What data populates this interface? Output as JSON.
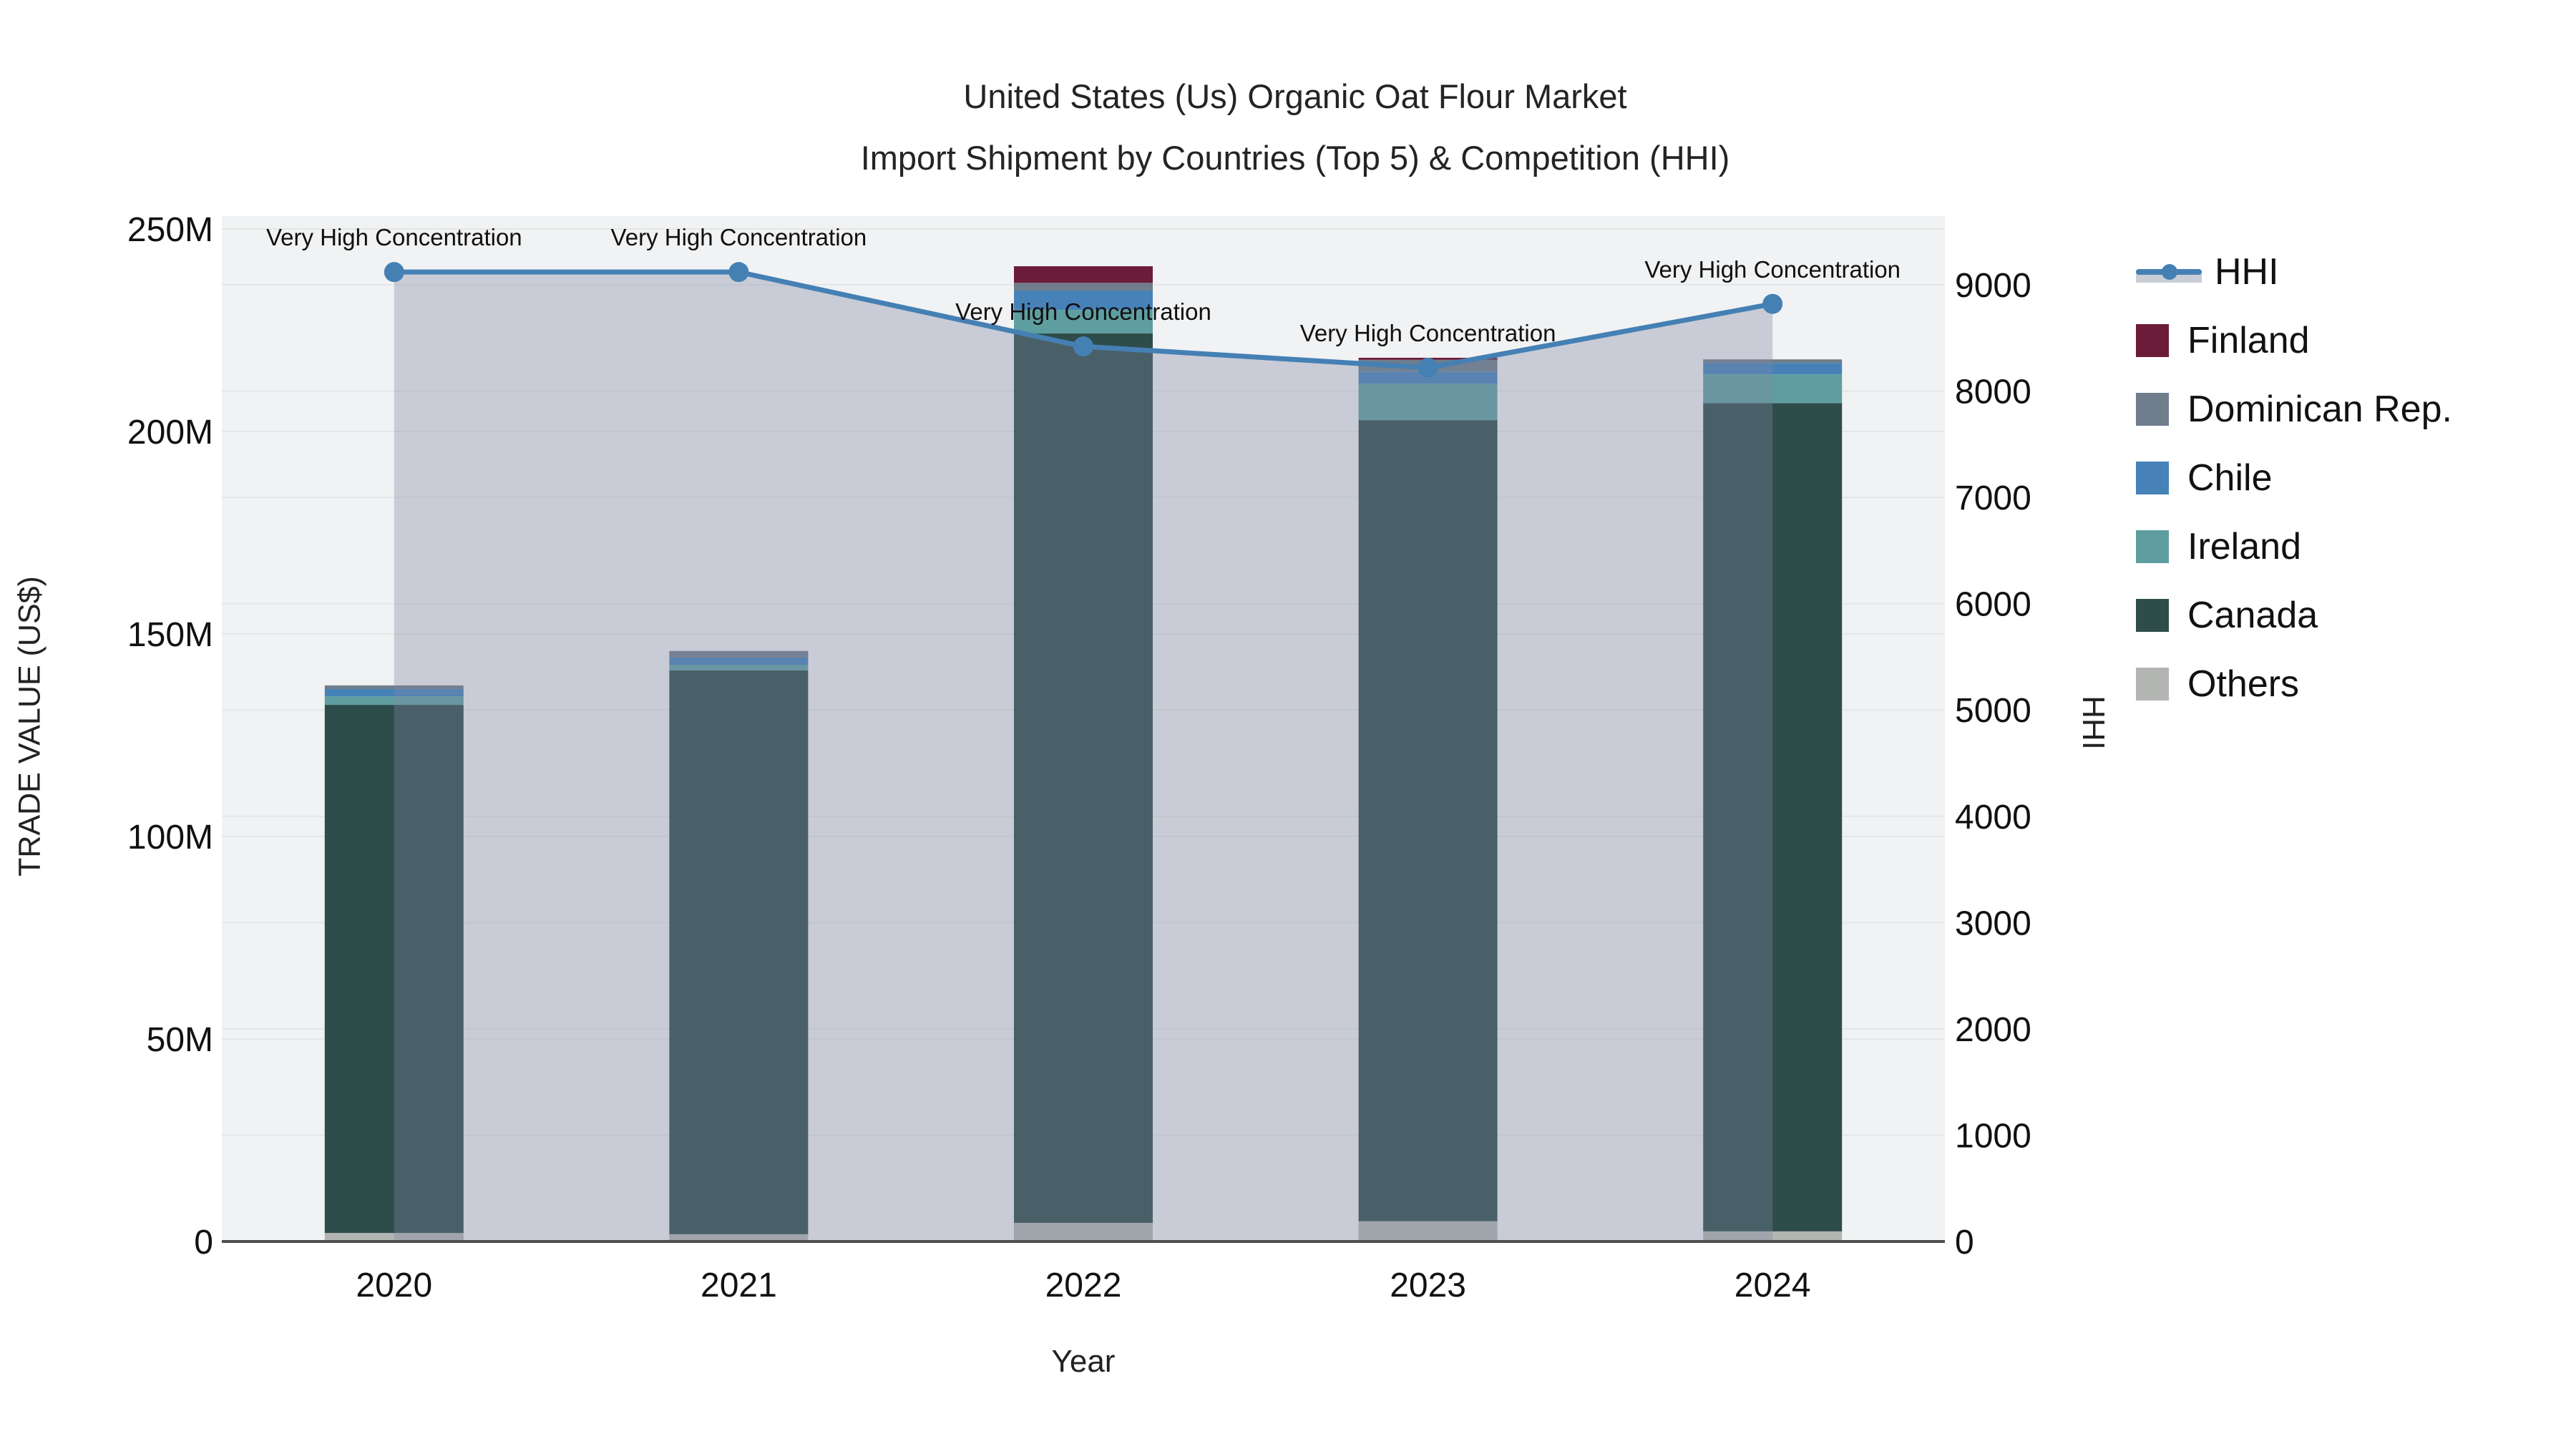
{
  "title": {
    "line1": "United States (Us) Organic Oat Flour Market",
    "line2": "Import Shipment by Countries (Top 5) & Competition (HHI)"
  },
  "axes": {
    "y_left": {
      "title": "TRADE VALUE (US$)",
      "tick_labels": [
        "0",
        "50M",
        "100M",
        "150M",
        "200M",
        "250M"
      ],
      "tick_values": [
        0,
        50,
        100,
        150,
        200,
        250
      ]
    },
    "y_right": {
      "title": "HHI",
      "tick_labels": [
        "0",
        "1000",
        "2000",
        "3000",
        "4000",
        "5000",
        "6000",
        "7000",
        "8000",
        "9000"
      ],
      "tick_values": [
        0,
        1000,
        2000,
        3000,
        4000,
        5000,
        6000,
        7000,
        8000,
        9000
      ]
    },
    "x": {
      "title": "Year",
      "categories": [
        "2020",
        "2021",
        "2022",
        "2023",
        "2024"
      ]
    }
  },
  "legend": {
    "items": [
      {
        "label": "HHI",
        "type": "line",
        "color": "#4580b4"
      },
      {
        "label": "Finland",
        "type": "swatch",
        "color": "#6b1c39"
      },
      {
        "label": "Dominican Rep.",
        "type": "swatch",
        "color": "#6f7d8c"
      },
      {
        "label": "Chile",
        "type": "swatch",
        "color": "#4682b8"
      },
      {
        "label": "Ireland",
        "type": "swatch",
        "color": "#5f9ea0"
      },
      {
        "label": "Canada",
        "type": "swatch",
        "color": "#2e4c4a"
      },
      {
        "label": "Others",
        "type": "swatch",
        "color": "#b2b5b2"
      }
    ]
  },
  "annotations": [
    {
      "text": "Very High Concentration",
      "year": "2020"
    },
    {
      "text": "Very High Concentration",
      "year": "2021"
    },
    {
      "text": "Very High Concentration",
      "year": "2022"
    },
    {
      "text": "Very High Concentration",
      "year": "2023"
    },
    {
      "text": "Very High Concentration",
      "year": "2024"
    }
  ],
  "chart_data": {
    "type": "bar+line",
    "categories": [
      "2020",
      "2021",
      "2022",
      "2023",
      "2024"
    ],
    "bar_value_unit": "Million US$",
    "stack_order_bottom_to_top": [
      "Others",
      "Canada",
      "Ireland",
      "Chile",
      "Dominican Rep.",
      "Finland"
    ],
    "series": [
      {
        "name": "Finland",
        "color": "#6b1c39",
        "values": [
          0,
          0,
          4.1,
          0.5,
          0
        ]
      },
      {
        "name": "Dominican Rep.",
        "color": "#6f7d8c",
        "values": [
          0.9,
          1.6,
          1.9,
          2.9,
          0.9
        ]
      },
      {
        "name": "Chile",
        "color": "#4682b8",
        "values": [
          1.8,
          1.8,
          4.8,
          3.0,
          2.8
        ]
      },
      {
        "name": "Ireland",
        "color": "#5f9ea0",
        "values": [
          2.1,
          1.4,
          5.8,
          9.0,
          7.1
        ]
      },
      {
        "name": "Canada",
        "color": "#2e4c4a",
        "values": [
          130.4,
          139.2,
          219.6,
          197.8,
          204.5
        ]
      },
      {
        "name": "Others",
        "color": "#b2b5b2",
        "values": [
          2.1,
          1.8,
          4.6,
          5.0,
          2.5
        ]
      }
    ],
    "bar_totals_M": [
      137.3,
      145.8,
      240.8,
      218.2,
      217.8
    ],
    "line": {
      "name": "HHI",
      "axis": "right",
      "color": "#4580b4",
      "area_fill_color": "rgba(126,136,160,0.35)",
      "values": [
        9120,
        9120,
        8420,
        8220,
        8820
      ]
    },
    "ylim_left_M": [
      0,
      250
    ],
    "ylim_right": [
      0,
      9000
    ],
    "grid": "on",
    "legend_position": "right",
    "plot_background": "#f1f2f3"
  }
}
